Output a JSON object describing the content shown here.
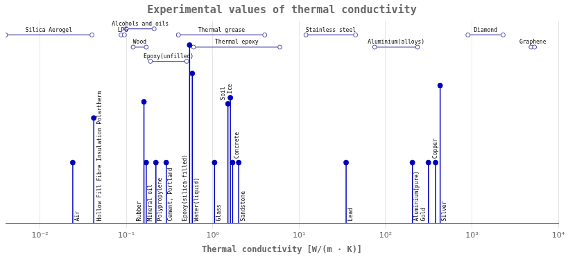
{
  "chart_data": {
    "type": "stem",
    "title": "Experimental values of thermal conductivity",
    "xlabel": "Thermal conductivity [W/(m · K)]",
    "log": "x",
    "xlim": [
      0.004,
      10000
    ],
    "xticks": [
      {
        "value": 0.01,
        "label": "10⁻²"
      },
      {
        "value": 0.1,
        "label": "10⁻¹"
      },
      {
        "value": 1,
        "label": "10⁰"
      },
      {
        "value": 10,
        "label": "10¹"
      },
      {
        "value": 100,
        "label": "10²"
      },
      {
        "value": 1000,
        "label": "10³"
      },
      {
        "value": 10000,
        "label": "10⁴"
      }
    ],
    "ylim": [
      0,
      1
    ],
    "tick_labels": "x",
    "grid": true,
    "series": [
      {
        "type": "stem",
        "color": "#0000bb",
        "labels": [
          "Air",
          "Hollow Fill Fibre Insulation Polartherm",
          "Mineral oil",
          "Rubber",
          "Polypropylene",
          "Cement, Portland",
          "Epoxy(silica-filled)",
          "Water(liquid)",
          "Glass",
          "Soil",
          "Ice",
          "Concrete",
          "Sandstone",
          "Lead",
          "Aluminium(pure)",
          "Gold",
          "Copper",
          "Silver"
        ],
        "x": [
          0.024,
          0.042,
          0.17,
          0.16,
          0.22,
          0.29,
          0.54,
          0.58,
          1.05,
          1.5,
          1.6,
          1.7,
          2.0,
          35,
          205,
          314,
          380,
          429
        ],
        "values": [
          0.3,
          0.52,
          0.3,
          0.6,
          0.3,
          0.3,
          0.88,
          0.74,
          0.3,
          0.59,
          0.62,
          0.3,
          0.3,
          0.3,
          0.3,
          0.3,
          0.3,
          0.68
        ]
      },
      {
        "type": "range",
        "color": "#4444aa",
        "labels": [
          "Silica Aerogel",
          "Alcohols and oils",
          "LPG",
          "Wood",
          "Epoxy(unfilled)",
          "Thermal grease",
          "Thermal epoxy",
          "Stainless steel",
          "Aluminium(alloys)",
          "Diamond",
          "Graphene"
        ],
        "lo": [
          0.004,
          0.1,
          0.087,
          0.12,
          0.19,
          0.4,
          0.6,
          12,
          75,
          900,
          4840
        ],
        "hi": [
          0.04,
          0.21,
          0.095,
          0.17,
          0.5,
          4.0,
          6.0,
          45,
          235,
          2300,
          5300
        ],
        "values": [
          0.93,
          0.96,
          0.93,
          0.87,
          0.8,
          0.93,
          0.87,
          0.93,
          0.87,
          0.93,
          0.87
        ]
      }
    ]
  }
}
